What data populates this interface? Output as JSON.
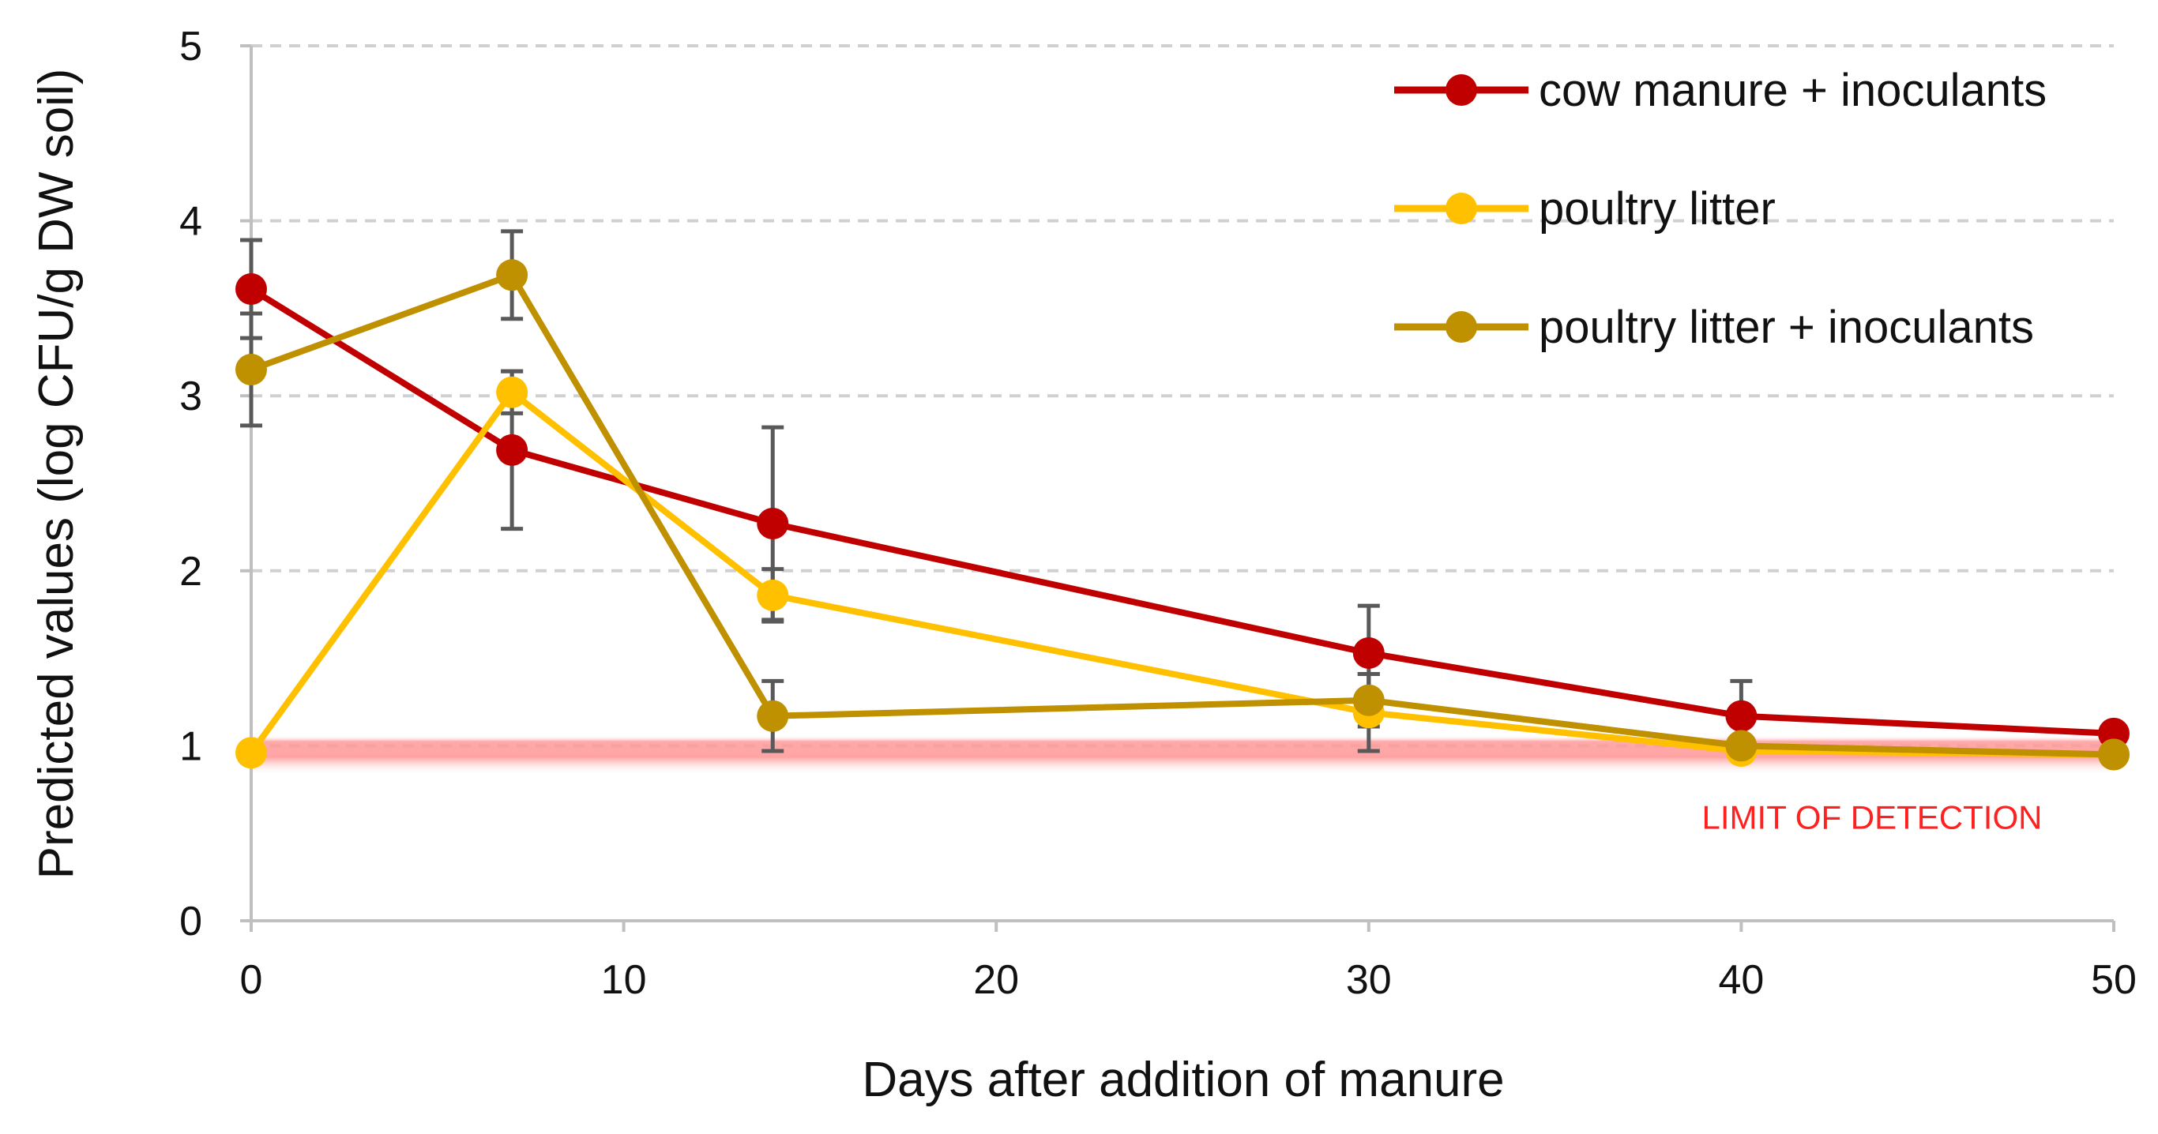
{
  "chart_data": {
    "type": "line",
    "xlabel": "Days after addition of manure",
    "ylabel": "Predicted values (log CFU/g DW soil)",
    "xlim": [
      0,
      50
    ],
    "ylim": [
      0,
      5
    ],
    "x_ticks": [
      0,
      10,
      20,
      30,
      40,
      50
    ],
    "y_ticks": [
      0,
      1,
      2,
      3,
      4,
      5
    ],
    "grid": "horizontal dashed",
    "legend_position": "top-right",
    "limit_of_detection": {
      "label": "LIMIT OF DETECTION",
      "value": 0.95,
      "color": "#ff9a9a"
    },
    "series": [
      {
        "name": "cow manure + inoculants",
        "color": "#c00000",
        "x": [
          0,
          7,
          14,
          30,
          40,
          50
        ],
        "values": [
          3.61,
          2.69,
          2.27,
          1.53,
          1.17,
          1.07
        ],
        "error": [
          0.28,
          0.45,
          0.55,
          0.27,
          0.2,
          0.0
        ]
      },
      {
        "name": "poultry litter",
        "color": "#ffc000",
        "x": [
          0,
          7,
          14,
          30,
          40,
          50
        ],
        "values": [
          0.96,
          3.02,
          1.86,
          1.19,
          0.97,
          0.95
        ],
        "error": [
          0.0,
          0.12,
          0.15,
          0.22,
          0.0,
          0.0
        ]
      },
      {
        "name": "poultry litter + inoculants",
        "color": "#bf9000",
        "x": [
          0,
          7,
          14,
          30,
          40,
          50
        ],
        "values": [
          3.15,
          3.69,
          1.17,
          1.26,
          1.0,
          0.95
        ],
        "error": [
          0.32,
          0.25,
          0.2,
          0.15,
          0.0,
          0.0
        ]
      }
    ]
  }
}
